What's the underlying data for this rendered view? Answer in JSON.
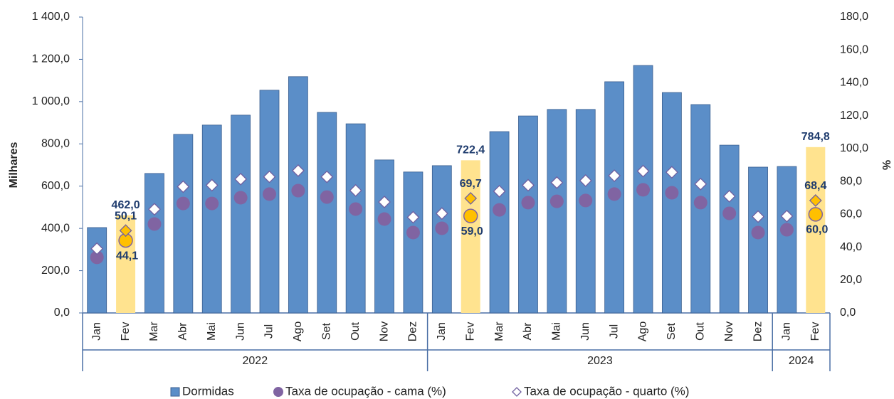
{
  "chart_data": {
    "type": "bar_with_points",
    "y_label": "Milhares",
    "y2_label": "%",
    "groups": [
      {
        "name": "2022",
        "categories": [
          "Jan",
          "Fev",
          "Mar",
          "Abr",
          "Mai",
          "Jun",
          "Jul",
          "Ago",
          "Set",
          "Out",
          "Nov",
          "Dez"
        ]
      },
      {
        "name": "2023",
        "categories": [
          "Jan",
          "Fev",
          "Mar",
          "Abr",
          "Mai",
          "Jun",
          "Jul",
          "Ago",
          "Set",
          "Out",
          "Nov",
          "Dez"
        ]
      },
      {
        "name": "2024",
        "categories": [
          "Jan",
          "Fev"
        ]
      }
    ],
    "highlight_indices": [
      1,
      13,
      25
    ],
    "highlight_color": "#ffe38f",
    "highlight_point_color": "#ffc000",
    "series": [
      {
        "name": "Dormidas",
        "kind": "bar",
        "color": "#5b8ec8",
        "values": [
          404,
          462.0,
          660,
          845,
          889,
          936,
          1054,
          1118,
          949,
          895,
          724,
          667,
          697,
          722.4,
          858,
          932,
          963,
          963,
          1094,
          1171,
          1043,
          986,
          794,
          690,
          693,
          784.8
        ],
        "value_labels": [
          null,
          "462,0",
          null,
          null,
          null,
          null,
          null,
          null,
          null,
          null,
          null,
          null,
          null,
          "722,4",
          null,
          null,
          null,
          null,
          null,
          null,
          null,
          null,
          null,
          null,
          null,
          "784,8"
        ]
      },
      {
        "name": "Taxa de ocupação - cama (%)",
        "kind": "circle",
        "axis": "y2",
        "color": "#8064a2",
        "values": [
          33.8,
          44.1,
          54.1,
          66.6,
          66.6,
          70.1,
          72.3,
          74.4,
          70.5,
          63.2,
          57.1,
          48.9,
          51.5,
          59.0,
          62.7,
          67.1,
          67.9,
          68.4,
          72.3,
          74.9,
          73.1,
          67.1,
          60.6,
          48.9,
          50.6,
          60.0
        ],
        "value_labels": [
          null,
          "44,1",
          null,
          null,
          null,
          null,
          null,
          null,
          null,
          null,
          null,
          null,
          null,
          "59,0",
          null,
          null,
          null,
          null,
          null,
          null,
          null,
          null,
          null,
          null,
          null,
          "60,0"
        ]
      },
      {
        "name": "Taxa de ocupação - quarto (%)",
        "kind": "diamond",
        "axis": "y2",
        "color": "#7060a0",
        "values": [
          39.1,
          50.1,
          63.1,
          76.8,
          77.7,
          81.4,
          82.8,
          86.6,
          82.8,
          74.5,
          67.5,
          58.2,
          60.5,
          69.7,
          74.0,
          77.7,
          79.3,
          80.5,
          83.5,
          86.3,
          85.6,
          78.4,
          71.0,
          58.6,
          58.9,
          68.4
        ],
        "value_labels": [
          null,
          "50,1",
          null,
          null,
          null,
          null,
          null,
          null,
          null,
          null,
          null,
          null,
          null,
          "69,7",
          null,
          null,
          null,
          null,
          null,
          null,
          null,
          null,
          null,
          null,
          null,
          "68,4"
        ]
      }
    ],
    "ylim": [
      0,
      1400
    ],
    "yticks": [
      {
        "value": 0,
        "label": "0,0"
      },
      {
        "value": 200,
        "label": "200,0"
      },
      {
        "value": 400,
        "label": "400,0"
      },
      {
        "value": 600,
        "label": "600,0"
      },
      {
        "value": 800,
        "label": "800,0"
      },
      {
        "value": 1000,
        "label": "1 000,0"
      },
      {
        "value": 1200,
        "label": "1 200,0"
      },
      {
        "value": 1400,
        "label": "1 400,0"
      }
    ],
    "y2lim": [
      0,
      180
    ],
    "y2ticks": [
      {
        "value": 0,
        "label": "0,0"
      },
      {
        "value": 20,
        "label": "20,0"
      },
      {
        "value": 40,
        "label": "40,0"
      },
      {
        "value": 60,
        "label": "60,0"
      },
      {
        "value": 80,
        "label": "80,0"
      },
      {
        "value": 100,
        "label": "100,0"
      },
      {
        "value": 120,
        "label": "120,0"
      },
      {
        "value": 140,
        "label": "140,0"
      },
      {
        "value": 160,
        "label": "160,0"
      },
      {
        "value": 180,
        "label": "180,0"
      }
    ]
  }
}
